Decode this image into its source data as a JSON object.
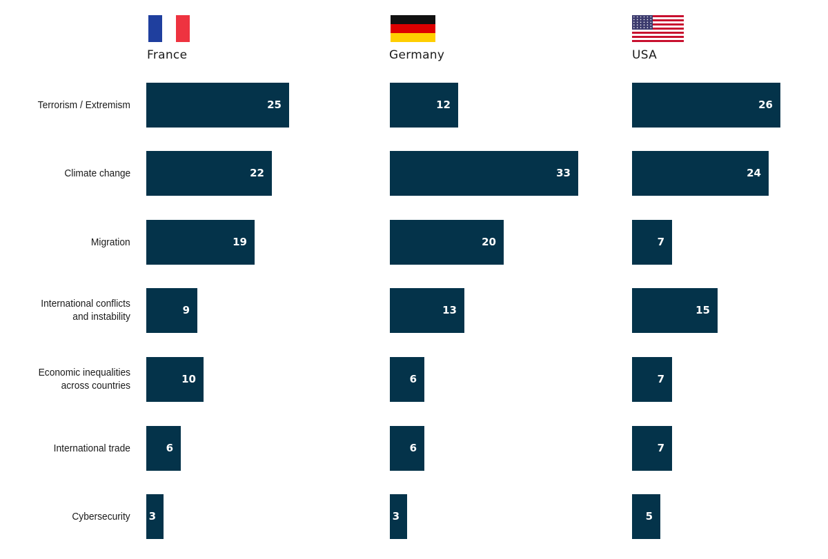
{
  "chart_data": [
    {
      "type": "bar",
      "orientation": "horizontal",
      "title": "France",
      "flag": "france-flag",
      "categories": [
        "Terrorism / Extremism",
        "Climate change",
        "Migration",
        "International conflicts\nand instability",
        "Economic inequalities\nacross countries",
        "International trade",
        "Cybersecurity"
      ],
      "values": [
        25,
        22,
        19,
        9,
        10,
        6,
        3
      ],
      "grid": false,
      "legend": "none"
    },
    {
      "type": "bar",
      "orientation": "horizontal",
      "title": "Germany",
      "flag": "germany-flag",
      "categories": [
        "Terrorism / Extremism",
        "Climate change",
        "Migration",
        "International conflicts\nand instability",
        "Economic inequalities\nacross countries",
        "International trade",
        "Cybersecurity"
      ],
      "values": [
        12,
        33,
        20,
        13,
        6,
        6,
        3
      ],
      "grid": false,
      "legend": "none"
    },
    {
      "type": "bar",
      "orientation": "horizontal",
      "title": "USA",
      "flag": "usa-flag",
      "categories": [
        "Terrorism / Extremism",
        "Climate change",
        "Migration",
        "International conflicts\nand instability",
        "Economic inequalities\nacross countries",
        "International trade",
        "Cybersecurity"
      ],
      "values": [
        26,
        24,
        7,
        15,
        7,
        7,
        5
      ],
      "grid": false,
      "legend": "none"
    }
  ],
  "colors": {
    "bar": "#04334a",
    "label": "#ffffff",
    "text": "#1a1a1a",
    "france_blue": "#1f3f9e",
    "france_red": "#ee3340",
    "germany_black": "#111111",
    "germany_red": "#dd0000",
    "germany_gold": "#ffce00",
    "usa_red": "#c8102e",
    "usa_blue": "#3c3b6e"
  }
}
